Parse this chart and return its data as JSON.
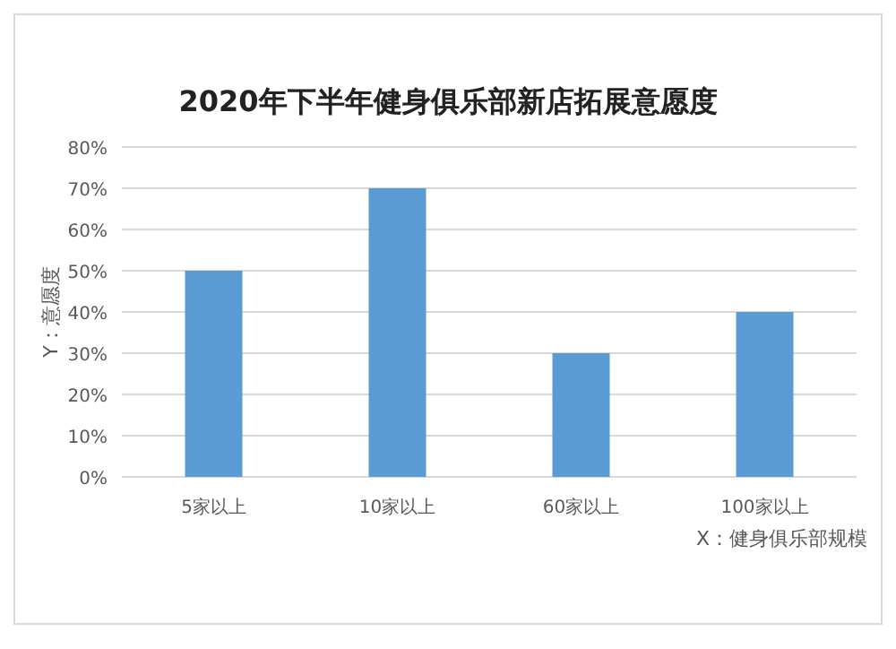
{
  "chart_data": {
    "type": "bar",
    "title": "2020年下半年健身俱乐部新店拓展意愿度",
    "xlabel": "X：健身俱乐部规模",
    "ylabel": "Y：意愿度",
    "categories": [
      "5家以上",
      "10家以上",
      "60家以上",
      "100家以上"
    ],
    "series": [
      {
        "color": "#5b9bd5",
        "values": [
          50,
          70,
          30,
          40
        ]
      }
    ],
    "ylim": [
      0,
      80
    ],
    "yticks": [
      {
        "value": 0,
        "label": "0%"
      },
      {
        "value": 10,
        "label": "10%"
      },
      {
        "value": 20,
        "label": "20%"
      },
      {
        "value": 30,
        "label": "30%"
      },
      {
        "value": 40,
        "label": "40%"
      },
      {
        "value": 50,
        "label": "50%"
      },
      {
        "value": 60,
        "label": "60%"
      },
      {
        "value": 70,
        "label": "70%"
      },
      {
        "value": 80,
        "label": "80%"
      }
    ],
    "grid": "y"
  }
}
